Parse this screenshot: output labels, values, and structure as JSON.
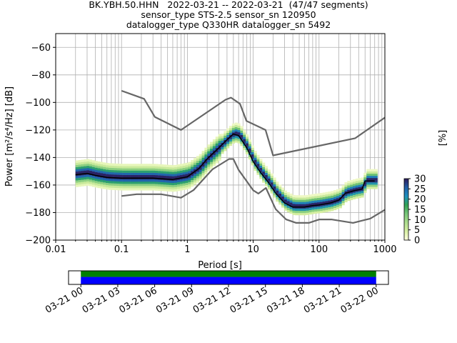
{
  "title_lines": [
    "BK.YBH.50.HHN   2022-03-21 -- 2022-03-21  (47/47 segments)",
    "sensor_type STS-2.5 sensor_sn 120950",
    "datalogger_type Q330HR datalogger_sn 5492"
  ],
  "chart_data": [
    {
      "type": "heatmap",
      "title": "BK.YBH.50.HHN   2022-03-21 -- 2022-03-21  (47/47 segments)",
      "xlabel": "Period [s]",
      "ylabel": "Power [m²/s⁴/Hz] [dB]",
      "xscale": "log",
      "xlim": [
        0.01,
        1000
      ],
      "ylim": [
        -200,
        -50
      ],
      "x_ticks": [
        "0.01",
        "0.1",
        "1",
        "10",
        "100",
        "1000"
      ],
      "y_ticks": [
        "−200",
        "−180",
        "−160",
        "−140",
        "−120",
        "−100",
        "−80",
        "−60"
      ],
      "grid": true,
      "colorbar": {
        "label": "[%]",
        "min": 0,
        "max": 30,
        "ticks": [
          "0",
          "5",
          "10",
          "15",
          "20",
          "25",
          "30"
        ],
        "colormap": "pqlx",
        "colors": [
          "#ffffe0",
          "#d9f0a3",
          "#addd8e",
          "#78c679",
          "#31a354",
          "#1d91c0",
          "#225ea8",
          "#2c1a5a"
        ]
      },
      "series": [
        {
          "role": "high_noise_model",
          "color": "#666666",
          "points": [
            [
              0.1,
              -91.5
            ],
            [
              0.22,
              -97.4
            ],
            [
              0.32,
              -110.5
            ],
            [
              0.8,
              -120
            ],
            [
              3.8,
              -98
            ],
            [
              4.6,
              -96.5
            ],
            [
              6.3,
              -101
            ],
            [
              7.9,
              -113.5
            ],
            [
              15.4,
              -120
            ],
            [
              20,
              -138.5
            ],
            [
              354.8,
              -126
            ],
            [
              1000,
              -111
            ]
          ]
        },
        {
          "role": "low_noise_model",
          "color": "#666666",
          "points": [
            [
              0.1,
              -168
            ],
            [
              0.17,
              -166.7
            ],
            [
              0.4,
              -166.7
            ],
            [
              0.8,
              -169.2
            ],
            [
              1.24,
              -163.7
            ],
            [
              2.4,
              -148.6
            ],
            [
              4.3,
              -141.1
            ],
            [
              5,
              -141.1
            ],
            [
              6,
              -149
            ],
            [
              10,
              -163.8
            ],
            [
              12,
              -166.2
            ],
            [
              15.6,
              -162.1
            ],
            [
              21.9,
              -177.5
            ],
            [
              31.6,
              -185
            ],
            [
              45,
              -187.5
            ],
            [
              70,
              -187.5
            ],
            [
              101,
              -185
            ],
            [
              154,
              -185
            ],
            [
              328,
              -187.5
            ],
            [
              600,
              -184.4
            ],
            [
              1000,
              -178
            ]
          ]
        },
        {
          "role": "mean",
          "color": "#000000",
          "points": [
            [
              0.02,
              -152.5
            ],
            [
              0.03,
              -151.5
            ],
            [
              0.04,
              -153
            ],
            [
              0.06,
              -154.5
            ],
            [
              0.1,
              -155
            ],
            [
              0.3,
              -155
            ],
            [
              0.6,
              -156
            ],
            [
              1,
              -154
            ],
            [
              1.5,
              -148
            ],
            [
              2,
              -141
            ],
            [
              3,
              -133
            ],
            [
              4,
              -127
            ],
            [
              5,
              -123
            ],
            [
              6,
              -124
            ],
            [
              8,
              -133
            ],
            [
              10,
              -143
            ],
            [
              13,
              -151
            ],
            [
              17,
              -158
            ],
            [
              22,
              -166
            ],
            [
              30,
              -173
            ],
            [
              40,
              -176
            ],
            [
              60,
              -176
            ],
            [
              80,
              -175
            ],
            [
              100,
              -174.5
            ],
            [
              150,
              -173
            ],
            [
              200,
              -171
            ],
            [
              250,
              -166
            ],
            [
              350,
              -164
            ],
            [
              450,
              -163
            ],
            [
              500,
              -157
            ],
            [
              700,
              -157
            ]
          ]
        }
      ],
      "density_band": {
        "spread_db_at_short_period": 4,
        "spread_db_near_microseism": 3,
        "spread_db_long_period": 3
      }
    },
    {
      "type": "timeline",
      "x_ticks": [
        "03-21 00",
        "03-21 03",
        "03-21 06",
        "03-21 09",
        "03-21 12",
        "03-21 15",
        "03-21 18",
        "03-21 21",
        "03-22 00"
      ],
      "xlim_hours": [
        -1,
        25
      ],
      "coverage_hours": [
        0,
        24
      ],
      "colors": [
        "#008000",
        "#0000ff"
      ]
    }
  ]
}
